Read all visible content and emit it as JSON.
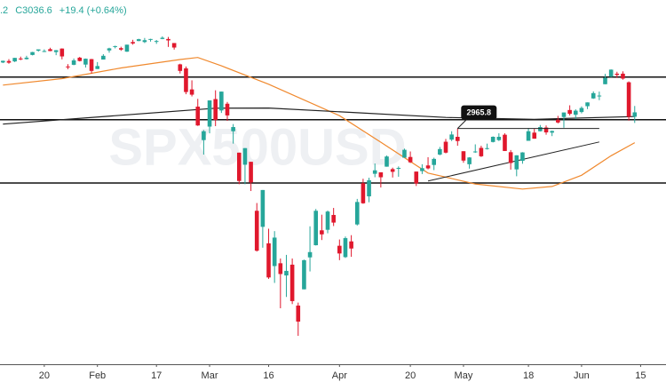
{
  "chart_data": {
    "type": "candlestick",
    "header": [
      ".2",
      "C3036.6",
      "+19.4 (+0.64%)"
    ],
    "watermark": "SPX500USD",
    "log_scale": true,
    "ylim": [
      2102,
      3578
    ],
    "xlim": [
      -0.5,
      112.3
    ],
    "up_color": "#26a69a",
    "down_color": "#e0182d",
    "xticks": [
      {
        "value": 7,
        "label": "20"
      },
      {
        "value": 16,
        "label": "Feb"
      },
      {
        "value": 26,
        "label": "17"
      },
      {
        "value": 35,
        "label": "Mar"
      },
      {
        "value": 45,
        "label": "16"
      },
      {
        "value": 57,
        "label": "Apr"
      },
      {
        "value": 69,
        "label": "20"
      },
      {
        "value": 78,
        "label": "May"
      },
      {
        "value": 89,
        "label": "18"
      },
      {
        "value": 98,
        "label": "Jun"
      },
      {
        "value": 108,
        "label": "15"
      }
    ],
    "candles": [
      [
        3266,
        3275,
        3263,
        3274
      ],
      [
        3273,
        3282,
        3260,
        3265
      ],
      [
        3271,
        3288,
        3268,
        3288
      ],
      [
        3285,
        3294,
        3277,
        3283
      ],
      [
        3282,
        3298,
        3280,
        3289
      ],
      [
        3302,
        3317,
        3300,
        3316
      ],
      [
        3323,
        3329,
        3318,
        3329
      ],
      [
        3321,
        3329,
        3316,
        3321
      ],
      [
        3330,
        3337,
        3320,
        3321
      ],
      [
        3316,
        3326,
        3301,
        3325
      ],
      [
        3333,
        3334,
        3281,
        3295
      ],
      [
        3247,
        3258,
        3234,
        3244
      ],
      [
        3255,
        3285,
        3253,
        3276
      ],
      [
        3289,
        3293,
        3271,
        3273
      ],
      [
        3256,
        3285,
        3242,
        3284
      ],
      [
        3282,
        3283,
        3214,
        3226
      ],
      [
        3235,
        3268,
        3235,
        3249
      ],
      [
        3280,
        3306,
        3280,
        3298
      ],
      [
        3324,
        3337,
        3313,
        3334
      ],
      [
        3344,
        3347,
        3334,
        3345
      ],
      [
        3335,
        3342,
        3322,
        3328
      ],
      [
        3318,
        3352,
        3317,
        3352
      ],
      [
        3365,
        3376,
        3352,
        3358
      ],
      [
        3370,
        3381,
        3369,
        3379
      ],
      [
        3365,
        3385,
        3360,
        3374
      ],
      [
        3378,
        3381,
        3367,
        3380
      ],
      [
        3369,
        3375,
        3356,
        3370
      ],
      [
        3380,
        3393,
        3379,
        3386
      ],
      [
        3380,
        3390,
        3341,
        3373
      ],
      [
        3360,
        3360,
        3328,
        3338
      ],
      [
        3257,
        3260,
        3214,
        3226
      ],
      [
        3238,
        3247,
        3118,
        3128
      ],
      [
        3140,
        3182,
        3108,
        3116
      ],
      [
        3062,
        3097,
        2977,
        2979
      ],
      [
        2916,
        2959,
        2855,
        2954
      ],
      [
        2974,
        3090,
        2945,
        3090
      ],
      [
        3096,
        3136,
        2976,
        3003
      ],
      [
        3045,
        3130,
        3034,
        3130
      ],
      [
        3075,
        3083,
        2999,
        3023
      ],
      [
        2954,
        2985,
        2901,
        2972
      ],
      [
        2863,
        2863,
        2734,
        2747
      ],
      [
        2813,
        2882,
        2734,
        2882
      ],
      [
        2825,
        2825,
        2707,
        2741
      ],
      [
        2630,
        2660,
        2478,
        2481
      ],
      [
        2569,
        2711,
        2492,
        2711
      ],
      [
        2508,
        2562,
        2381,
        2386
      ],
      [
        2426,
        2553,
        2367,
        2529
      ],
      [
        2436,
        2453,
        2281,
        2398
      ],
      [
        2393,
        2466,
        2319,
        2409
      ],
      [
        2431,
        2453,
        2295,
        2305
      ],
      [
        2290,
        2300,
        2191,
        2237
      ],
      [
        2345,
        2449,
        2345,
        2447
      ],
      [
        2457,
        2571,
        2407,
        2476
      ],
      [
        2501,
        2637,
        2500,
        2630
      ],
      [
        2556,
        2615,
        2520,
        2541
      ],
      [
        2558,
        2631,
        2545,
        2627
      ],
      [
        2614,
        2641,
        2572,
        2585
      ],
      [
        2499,
        2522,
        2447,
        2471
      ],
      [
        2458,
        2533,
        2455,
        2527
      ],
      [
        2515,
        2538,
        2459,
        2489
      ],
      [
        2578,
        2676,
        2574,
        2664
      ],
      [
        2738,
        2756,
        2657,
        2659
      ],
      [
        2686,
        2760,
        2663,
        2750
      ],
      [
        2776,
        2818,
        2762,
        2790
      ],
      [
        2782,
        2782,
        2721,
        2762
      ],
      [
        2805,
        2851,
        2805,
        2847
      ],
      [
        2795,
        2801,
        2761,
        2784
      ],
      [
        2799,
        2806,
        2764,
        2800
      ],
      [
        2842,
        2880,
        2842,
        2875
      ],
      [
        2845,
        2868,
        2820,
        2823
      ],
      [
        2785,
        2785,
        2727,
        2737
      ],
      [
        2787,
        2815,
        2775,
        2799
      ],
      [
        2810,
        2844,
        2794,
        2798
      ],
      [
        2812,
        2842,
        2791,
        2837
      ],
      [
        2855,
        2887,
        2852,
        2878
      ],
      [
        2909,
        2921,
        2860,
        2863
      ],
      [
        2918,
        2954,
        2912,
        2940
      ],
      [
        2930,
        2965.8,
        2892,
        2912
      ],
      [
        2869,
        2869,
        2821,
        2830
      ],
      [
        2815,
        2844,
        2797,
        2843
      ],
      [
        2868,
        2898,
        2862,
        2868
      ],
      [
        2883,
        2892,
        2845,
        2848
      ],
      [
        2879,
        2901,
        2876,
        2882
      ],
      [
        2908,
        2932,
        2906,
        2930
      ],
      [
        2916,
        2945,
        2912,
        2930
      ],
      [
        2939,
        2945,
        2870,
        2870
      ],
      [
        2865,
        2874,
        2793,
        2820
      ],
      [
        2794,
        2852,
        2766,
        2852
      ],
      [
        2829,
        2865,
        2817,
        2864
      ],
      [
        2913,
        2968,
        2913,
        2954
      ],
      [
        2948,
        2964,
        2922,
        2922
      ],
      [
        2954,
        2981,
        2953,
        2972
      ],
      [
        2970,
        2979,
        2939,
        2949
      ],
      [
        2948,
        2957,
        2933,
        2955
      ],
      [
        3004,
        3021,
        2988,
        2992
      ],
      [
        3016,
        3036,
        2969,
        3036
      ],
      [
        3047,
        3068,
        3023,
        3030
      ],
      [
        3026,
        3050,
        3007,
        3044
      ],
      [
        3038,
        3063,
        3032,
        3056
      ],
      [
        3064,
        3081,
        3051,
        3081
      ],
      [
        3099,
        3131,
        3097,
        3123
      ],
      [
        3112,
        3130,
        3091,
        3112
      ],
      [
        3164,
        3212,
        3164,
        3194
      ],
      [
        3199,
        3233,
        3197,
        3232
      ],
      [
        3213,
        3222,
        3193,
        3207
      ],
      [
        3213,
        3224,
        3185,
        3190
      ],
      [
        3173,
        3177,
        3000,
        3017.2
      ],
      [
        3017.2,
        3065,
        2990,
        3036.6
      ]
    ],
    "series": [
      {
        "color": "#f0892e",
        "x": [
          0,
          10,
          20,
          30,
          33,
          37,
          45,
          57,
          64,
          72,
          80,
          88,
          93,
          98,
          103,
          107
        ],
        "values": [
          3160,
          3190,
          3240,
          3280,
          3290,
          3250,
          3164,
          3022,
          2907,
          2779,
          2735,
          2715,
          2725,
          2770,
          2850,
          2905
        ]
      },
      {
        "color": "#222222",
        "x": [
          0,
          36,
          45,
          60,
          75,
          90,
          107
        ],
        "values": [
          2985,
          3055,
          3056,
          3035,
          3014,
          3006,
          3018
        ]
      }
    ],
    "hlines": [
      3197,
      3004,
      2739
    ],
    "trendline": {
      "x": [
        72,
        101
      ],
      "values": [
        2747,
        2908
      ]
    },
    "annotation": {
      "x": [
        77,
        101
      ],
      "value": 2965.8
    }
  }
}
